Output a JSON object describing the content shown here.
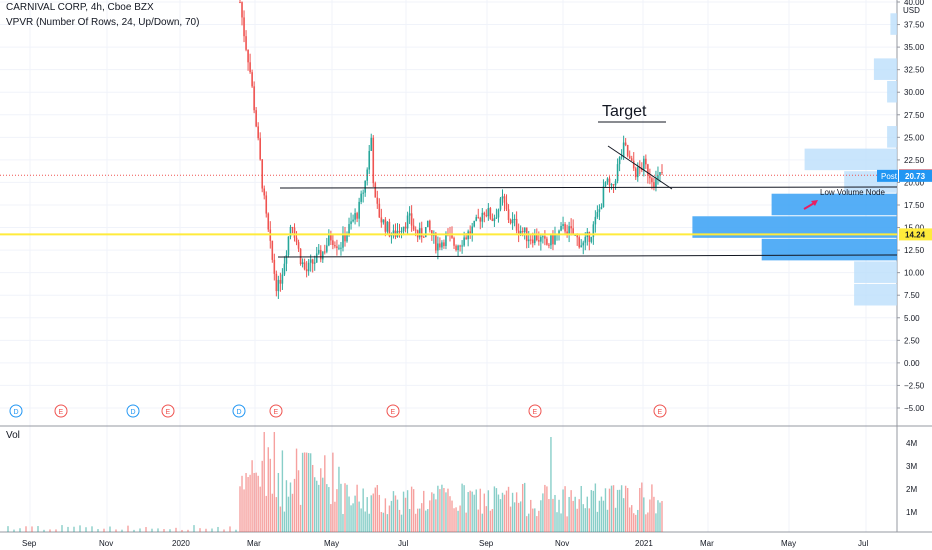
{
  "header": {
    "title": "CARNIVAL CORP, 4h, Cboe BZX",
    "indicator": "VPVR (Number Of Rows, 24, Up/Down, 70)"
  },
  "volume_pane": {
    "label": "Vol"
  },
  "currency": "USD",
  "colors": {
    "up": "#26a69a",
    "down": "#ef5350",
    "grid": "#f0f3fa",
    "volume_profile": "#2196f3",
    "yellow_line": "#ffeb3b",
    "price_badge": "#ef5350",
    "post_badge": "#2196f3"
  },
  "chart_data": {
    "type": "candlestick",
    "title": "CARNIVAL CORP, 4h, Cboe BZX",
    "price_axis": {
      "ticks": [
        "40.00",
        "37.50",
        "35.00",
        "32.50",
        "30.00",
        "27.50",
        "25.00",
        "22.50",
        "20.00",
        "17.50",
        "15.00",
        "12.50",
        "10.00",
        "7.50",
        "5.00",
        "2.50",
        "0.00",
        "−2.50",
        "−5.00"
      ],
      "ylim": [
        -6,
        40
      ]
    },
    "time_axis": [
      "Sep",
      "Nov",
      "2020",
      "Mar",
      "May",
      "Jul",
      "Sep",
      "Nov",
      "2021",
      "Mar",
      "May",
      "Jul"
    ],
    "volume_axis": [
      "4M",
      "3M",
      "2M",
      "1M"
    ],
    "price_badges": [
      {
        "label": "",
        "value": "20.79",
        "price": 20.79,
        "color": "#ef5350"
      },
      {
        "label": "Post",
        "value": "20.73",
        "price": 20.73,
        "color": "#2196f3"
      },
      {
        "label": "",
        "value": "14.24",
        "price": 14.24,
        "color": "#ffeb3b"
      }
    ],
    "price_path": [
      [
        0,
        40
      ],
      [
        0.03,
        36
      ],
      [
        0.06,
        33
      ],
      [
        0.1,
        27
      ],
      [
        0.13,
        22
      ],
      [
        0.16,
        17
      ],
      [
        0.2,
        12
      ],
      [
        0.24,
        8
      ],
      [
        0.28,
        11
      ],
      [
        0.33,
        16
      ],
      [
        0.38,
        12
      ],
      [
        0.42,
        10
      ],
      [
        0.46,
        11
      ],
      [
        0.52,
        12
      ],
      [
        0.58,
        14
      ],
      [
        0.64,
        13
      ],
      [
        0.7,
        15
      ],
      [
        0.76,
        17
      ],
      [
        0.8,
        20
      ],
      [
        0.84,
        25
      ],
      [
        0.86,
        18
      ],
      [
        0.9,
        16
      ],
      [
        0.94,
        15
      ],
      [
        0.98,
        14
      ],
      [
        1.02,
        15
      ],
      [
        1.08,
        16
      ],
      [
        1.14,
        14
      ],
      [
        1.2,
        15
      ],
      [
        1.26,
        13
      ],
      [
        1.32,
        14
      ],
      [
        1.38,
        13
      ],
      [
        1.44,
        14
      ],
      [
        1.5,
        15
      ],
      [
        1.56,
        17
      ],
      [
        1.62,
        16
      ],
      [
        1.68,
        18
      ],
      [
        1.72,
        16
      ],
      [
        1.78,
        15
      ],
      [
        1.84,
        14
      ],
      [
        1.9,
        14
      ],
      [
        1.96,
        13
      ],
      [
        2.02,
        14
      ],
      [
        2.08,
        15
      ],
      [
        2.14,
        14
      ],
      [
        2.2,
        13
      ],
      [
        2.26,
        15
      ],
      [
        2.3,
        17
      ],
      [
        2.34,
        20
      ],
      [
        2.38,
        19
      ],
      [
        2.42,
        22
      ],
      [
        2.46,
        24
      ],
      [
        2.5,
        22
      ],
      [
        2.54,
        21
      ],
      [
        2.58,
        22
      ],
      [
        2.62,
        21
      ],
      [
        2.66,
        20
      ],
      [
        2.7,
        21
      ]
    ],
    "volume_profile": [
      {
        "price": 37.5,
        "volume": 0.02
      },
      {
        "price": 32.5,
        "volume": 0.07
      },
      {
        "price": 30.0,
        "volume": 0.03
      },
      {
        "price": 25.0,
        "volume": 0.03
      },
      {
        "price": 22.5,
        "volume": 0.28
      },
      {
        "price": 20.0,
        "volume": 0.16
      },
      {
        "price": 17.5,
        "volume": 0.38
      },
      {
        "price": 15.0,
        "volume": 0.62
      },
      {
        "price": 12.5,
        "volume": 0.41
      },
      {
        "price": 10.0,
        "volume": 0.13
      },
      {
        "price": 7.5,
        "volume": 0.13
      }
    ],
    "annotations": [
      {
        "text": "Target",
        "type": "label",
        "price": 27.3
      },
      {
        "text": "Low Volume Node",
        "type": "label",
        "price": 19.0
      }
    ],
    "lines": [
      {
        "name": "resistance",
        "price": 19.9
      },
      {
        "name": "support",
        "price": 12.2
      },
      {
        "name": "horizontal-yellow",
        "price": 14.24
      }
    ],
    "event_markers": [
      {
        "kind": "D",
        "color": "#2196f3"
      },
      {
        "kind": "E",
        "color": "#ef5350"
      },
      {
        "kind": "D",
        "color": "#2196f3"
      },
      {
        "kind": "E",
        "color": "#ef5350"
      },
      {
        "kind": "D",
        "color": "#2196f3"
      },
      {
        "kind": "E",
        "color": "#ef5350"
      },
      {
        "kind": "E",
        "color": "#ef5350"
      },
      {
        "kind": "E",
        "color": "#ef5350"
      },
      {
        "kind": "E",
        "color": "#ef5350"
      }
    ]
  }
}
